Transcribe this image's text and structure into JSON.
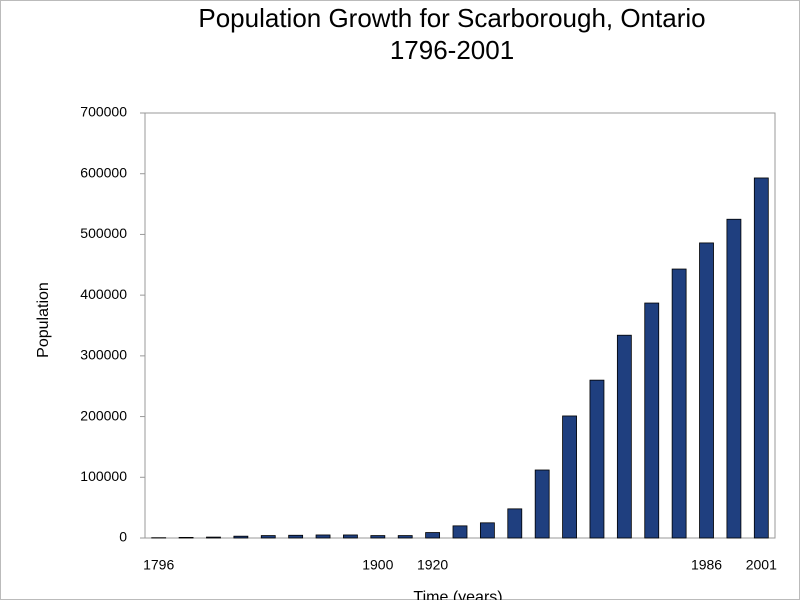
{
  "chart_data": {
    "type": "bar",
    "title": "Population Growth for Scarborough, Ontario",
    "subtitle": "1796-2001",
    "y_label": "Population",
    "x_label": "Time (years)",
    "categories": [
      "1796",
      null,
      null,
      null,
      null,
      null,
      null,
      null,
      "1900",
      null,
      "1920",
      null,
      null,
      null,
      null,
      null,
      null,
      null,
      null,
      null,
      "1986",
      null,
      "2001"
    ],
    "values": [
      500,
      1000,
      1500,
      3000,
      4000,
      4500,
      5000,
      5000,
      4000,
      4000,
      9000,
      20000,
      25000,
      48000,
      112000,
      201000,
      260000,
      334000,
      387000,
      443000,
      486000,
      525000,
      593000
    ],
    "color": "#1f3f7f",
    "ylim": [
      0,
      700000
    ],
    "yticks": [
      0,
      100000,
      200000,
      300000,
      400000,
      500000,
      600000,
      700000
    ],
    "grid": false
  }
}
